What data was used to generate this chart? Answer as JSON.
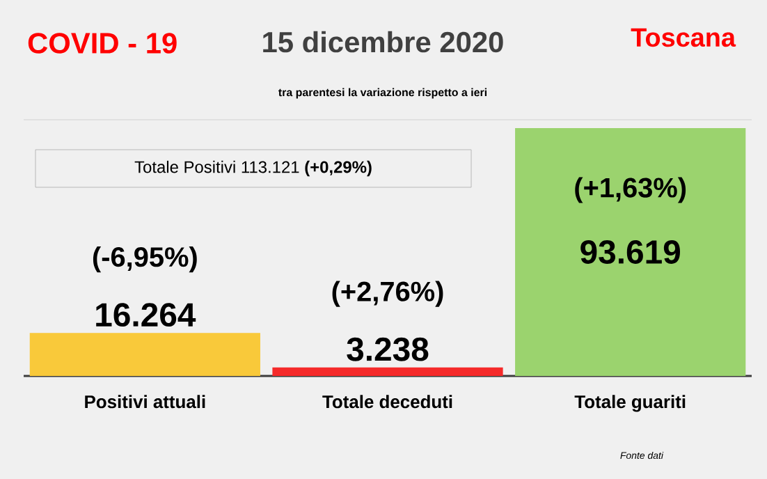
{
  "chart_data": {
    "type": "bar",
    "title": "15 dicembre 2020",
    "subtitle": "tra parentesi la variazione rispetto a ieri",
    "categories": [
      "Positivi attuali",
      "Totale deceduti",
      "Totale guariti"
    ],
    "values": [
      16264,
      3238,
      93619
    ],
    "value_labels": [
      "16.264",
      "3.238",
      "93.619"
    ],
    "colors": [
      "#f9c93a",
      "#f52a2a",
      "#9bd36e"
    ],
    "annotations": [
      "COVID - 19",
      "Toscana",
      "Totale Positivi    113.121 **(+0,29%)**",
      "(-6,95%)",
      "(+2,76%)",
      "(+1,63%)",
      "Fonte dati"
    ]
  }
}
